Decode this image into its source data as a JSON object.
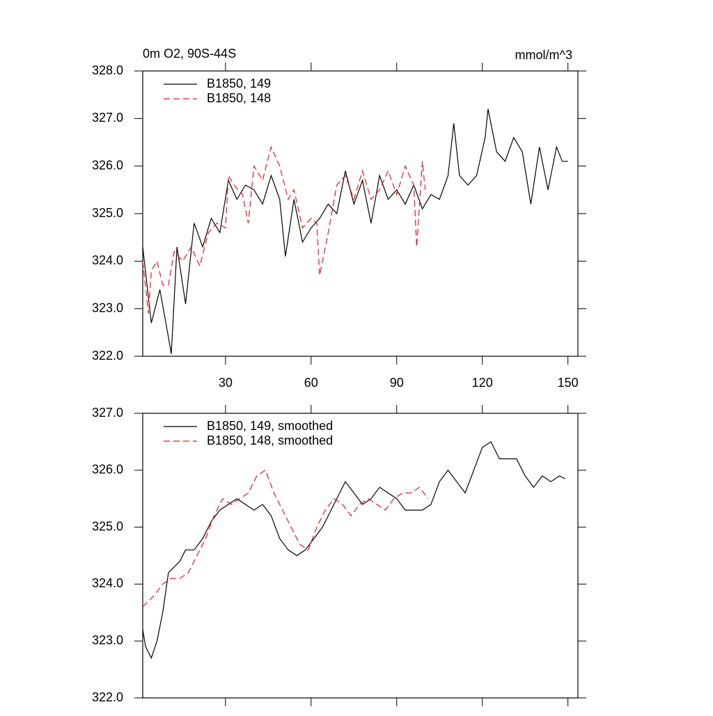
{
  "chart_data": [
    {
      "type": "line",
      "title": "0m O2, 90S-44S",
      "units": "mmol/m^3",
      "xlim": [
        1,
        153.5
      ],
      "xticks": [
        30,
        60,
        90,
        120,
        150
      ],
      "ylim": [
        322,
        328
      ],
      "yticks": [
        {
          "value": 322,
          "label": "322.0"
        },
        {
          "value": 323,
          "label": "323.0"
        },
        {
          "value": 324,
          "label": "324.0"
        },
        {
          "value": 325,
          "label": "325.0"
        },
        {
          "value": 326,
          "label": "326.0"
        },
        {
          "value": 327,
          "label": "327.0"
        },
        {
          "value": 328,
          "label": "328.0"
        }
      ],
      "legend": "upper left",
      "series": [
        {
          "name": "B1850, 149",
          "color": "#000000",
          "line_style": "solid",
          "x": [
            1,
            4,
            7,
            10,
            11,
            13,
            16,
            19,
            22,
            25,
            28,
            31,
            34,
            37,
            40,
            43,
            46,
            49,
            51,
            54,
            57,
            60,
            63,
            66,
            69,
            72,
            75,
            78,
            81,
            84,
            87,
            90,
            93,
            96,
            99,
            102,
            105,
            108,
            110,
            112,
            115,
            118,
            121,
            122,
            125,
            128,
            131,
            134,
            137,
            140,
            143,
            146,
            148,
            150
          ],
          "values": [
            324.3,
            322.7,
            323.4,
            322.4,
            322.05,
            324.3,
            323.1,
            324.8,
            324.3,
            324.9,
            324.6,
            325.7,
            325.3,
            325.6,
            325.5,
            325.2,
            325.8,
            325.3,
            324.1,
            325.3,
            324.4,
            324.7,
            324.9,
            325.2,
            325.0,
            325.9,
            325.2,
            325.7,
            324.8,
            325.8,
            325.3,
            325.5,
            325.2,
            325.6,
            325.1,
            325.4,
            325.3,
            325.8,
            326.9,
            325.8,
            325.6,
            325.8,
            326.6,
            327.2,
            326.3,
            326.1,
            326.6,
            326.3,
            325.2,
            326.4,
            325.5,
            326.4,
            326.1,
            326.1
          ]
        },
        {
          "name": "B1850, 148",
          "color": "#e8141e",
          "line_style": "dashed",
          "x": [
            1,
            3,
            4,
            6,
            8,
            10,
            12,
            15,
            18,
            21,
            24,
            27,
            30,
            31,
            33,
            36,
            38,
            40,
            43,
            46,
            49,
            52,
            54,
            57,
            60,
            62,
            63,
            66,
            69,
            72,
            75,
            78,
            81,
            84,
            87,
            90,
            93,
            96,
            97,
            99,
            100
          ],
          "values": [
            324.0,
            322.9,
            323.8,
            324.0,
            323.5,
            323.5,
            324.2,
            324.0,
            324.3,
            323.9,
            324.6,
            324.8,
            324.7,
            325.8,
            325.6,
            325.4,
            324.8,
            326.0,
            325.7,
            326.4,
            326.0,
            325.3,
            325.5,
            324.7,
            324.9,
            324.8,
            323.7,
            324.6,
            325.6,
            325.8,
            325.3,
            325.9,
            325.3,
            325.5,
            325.9,
            325.4,
            326.0,
            325.6,
            324.3,
            326.1,
            325.5
          ]
        }
      ]
    },
    {
      "type": "line",
      "xlim": [
        1,
        153.5
      ],
      "ylim": [
        322,
        327
      ],
      "yticks": [
        {
          "value": 322,
          "label": "322.0"
        },
        {
          "value": 323,
          "label": "323.0"
        },
        {
          "value": 324,
          "label": "324.0"
        },
        {
          "value": 325,
          "label": "325.0"
        },
        {
          "value": 326,
          "label": "326.0"
        },
        {
          "value": 327,
          "label": "327.0"
        }
      ],
      "legend": "upper left",
      "series": [
        {
          "name": "B1850, 149, smoothed",
          "color": "#000000",
          "line_style": "solid",
          "x": [
            1,
            2,
            4,
            6,
            8,
            10,
            12,
            14,
            16,
            19,
            22,
            25,
            28,
            31,
            34,
            37,
            40,
            43,
            46,
            49,
            52,
            55,
            58,
            61,
            64,
            67,
            70,
            72,
            75,
            78,
            81,
            84,
            87,
            90,
            93,
            96,
            99,
            102,
            105,
            108,
            111,
            114,
            117,
            120,
            123,
            126,
            129,
            132,
            135,
            138,
            141,
            144,
            147,
            149
          ],
          "values": [
            323.2,
            322.9,
            322.7,
            323.0,
            323.5,
            324.2,
            324.3,
            324.4,
            324.6,
            324.6,
            324.8,
            325.1,
            325.3,
            325.4,
            325.5,
            325.4,
            325.3,
            325.4,
            325.2,
            324.8,
            324.6,
            324.5,
            324.6,
            324.8,
            325.0,
            325.3,
            325.6,
            325.8,
            325.6,
            325.4,
            325.5,
            325.7,
            325.6,
            325.5,
            325.3,
            325.3,
            325.3,
            325.4,
            325.8,
            326.0,
            325.8,
            325.6,
            326.0,
            326.4,
            326.5,
            326.2,
            326.2,
            326.2,
            325.9,
            325.7,
            325.9,
            325.8,
            325.9,
            325.85
          ]
        },
        {
          "name": "B1850, 148, smoothed",
          "color": "#e8141e",
          "line_style": "dashed",
          "x": [
            1,
            3,
            5,
            8,
            11,
            14,
            17,
            20,
            23,
            26,
            29,
            32,
            35,
            38,
            41,
            44,
            47,
            50,
            53,
            56,
            59,
            62,
            65,
            68,
            71,
            74,
            77,
            80,
            83,
            86,
            89,
            92,
            95,
            98,
            101
          ],
          "values": [
            323.6,
            323.7,
            323.8,
            324.0,
            324.1,
            324.1,
            324.2,
            324.5,
            324.8,
            325.2,
            325.5,
            325.4,
            325.5,
            325.6,
            325.9,
            326.0,
            325.6,
            325.3,
            325.0,
            324.7,
            324.6,
            325.0,
            325.3,
            325.5,
            325.4,
            325.2,
            325.4,
            325.5,
            325.4,
            325.3,
            325.5,
            325.6,
            325.6,
            325.7,
            325.5
          ]
        }
      ]
    }
  ]
}
